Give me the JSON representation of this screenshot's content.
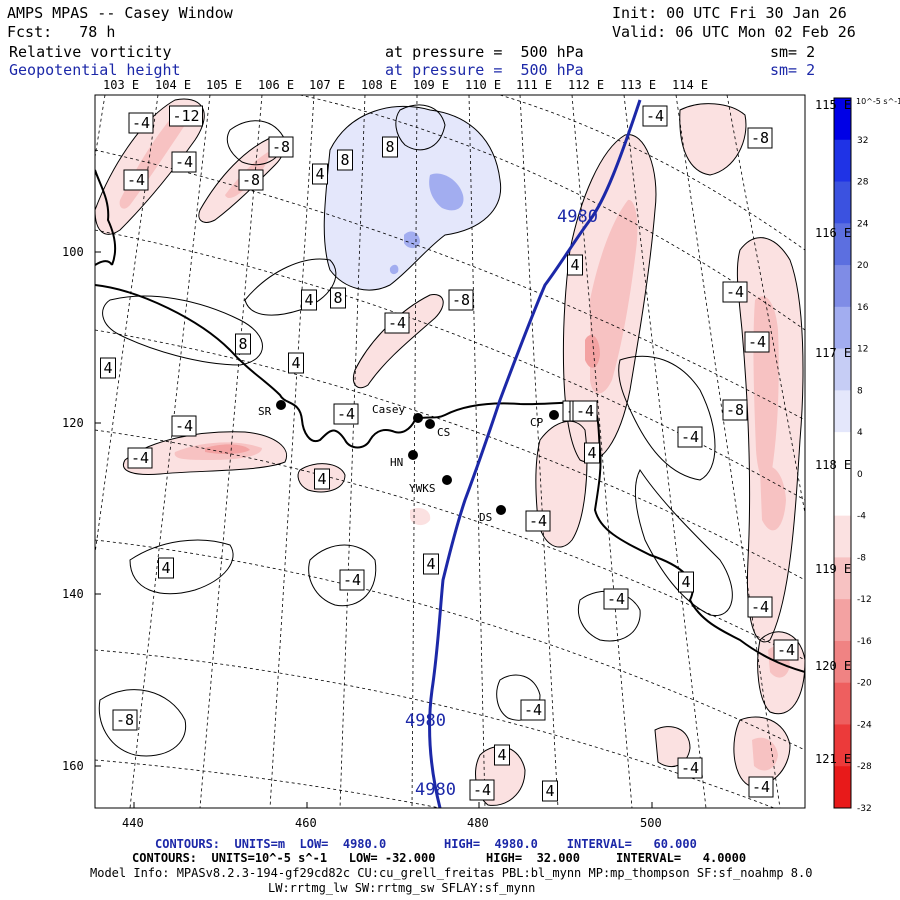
{
  "header": {
    "model": "AMPS MPAS -- Casey Window",
    "init": "Init: 00 UTC Fri 30 Jan 26",
    "forecast": "Fcst:   78 h",
    "valid": "Valid: 06 UTC Mon 02 Feb 26",
    "field1": {
      "name": "Relative vorticity",
      "level": "at pressure =  500 hPa",
      "sm": "sm= 2"
    },
    "field2": {
      "name": "Geopotential height",
      "level": "at pressure =  500 hPa",
      "sm": "sm= 2"
    }
  },
  "longitudes": [
    "103 E",
    "104 E",
    "105 E",
    "106 E",
    "107 E",
    "108 E",
    "109 E",
    "110 E",
    "111 E",
    "112 E",
    "113 E",
    "114 E"
  ],
  "right_labels": [
    "115 E",
    "116 E",
    "117 E",
    "118 E",
    "119 E",
    "120 E",
    "121 E"
  ],
  "y_ticks": [
    "100",
    "120",
    "140",
    "160"
  ],
  "x_ticks": [
    "440",
    "460",
    "480",
    "500"
  ],
  "colorbar": {
    "unit": "10^-5 s^-1",
    "labels": [
      "32",
      "28",
      "24",
      "20",
      "16",
      "12",
      "8",
      "4",
      "0",
      "-4",
      "-8",
      "-12",
      "-16",
      "-20",
      "-24",
      "-28",
      "-32"
    ],
    "colors": [
      "#0000e6",
      "#1f33e6",
      "#3b52e0",
      "#5c6fe0",
      "#7f8ce6",
      "#a2adf0",
      "#c6cdf5",
      "#e4e7fb",
      "#ffffff",
      "#ffffff",
      "#fbe1e1",
      "#f7c2c2",
      "#f3a2a2",
      "#f08383",
      "#ee5f5f",
      "#ec3a3a",
      "#e81a1a"
    ]
  },
  "stations": [
    {
      "code": "SR"
    },
    {
      "code": "Casey"
    },
    {
      "code": "CS"
    },
    {
      "code": "HN"
    },
    {
      "code": "YWKS"
    },
    {
      "code": "DS"
    },
    {
      "code": "CP"
    }
  ],
  "height_contour_label": "4980",
  "vorticity_labels": [
    "-4",
    "-12",
    "-4",
    "-4",
    "-8",
    "-8",
    "4",
    "8",
    "8",
    "-4",
    "4",
    "4",
    "8",
    "-4",
    "-8",
    "8",
    "4",
    "-4",
    "4",
    "-4",
    "-4",
    "4",
    "-4",
    "4",
    "-4",
    "-4",
    "-8",
    "-4",
    "-4",
    "4",
    "-4",
    "-4",
    "4",
    "-4",
    "4",
    "-4",
    "-4",
    "-8",
    "-4",
    "4",
    "-4",
    "-4",
    "-4",
    "4",
    "-8",
    "-4"
  ],
  "footer": {
    "line1_label": "CONTOURS:  UNITS=m  LOW=  4980.0        HIGH=  4980.0    INTERVAL=   60.000",
    "line2_label": "CONTOURS:  UNITS=10^-5 s^-1   LOW= -32.000       HIGH=  32.000     INTERVAL=   4.0000",
    "model_info": "Model Info: MPASv8.2.3-194-gf29cd82c CU:cu_grell_freitas PBL:bl_mynn MP:mp_thompson SF:sf_noahmp 8.0",
    "model_info2": "LW:rrtmg_lw SW:rrtmg_sw SFLAY:sf_mynn"
  }
}
